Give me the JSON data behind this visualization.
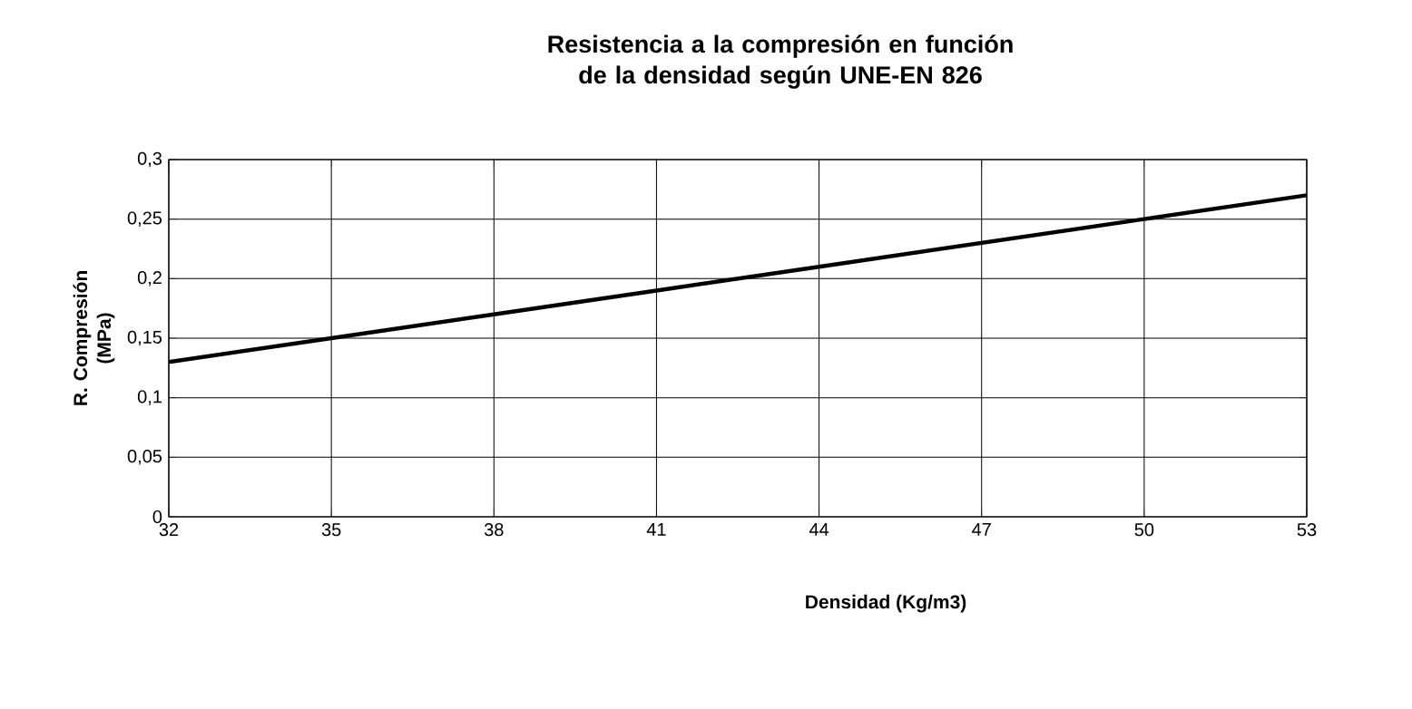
{
  "chart_data": {
    "type": "line",
    "title": "Resistencia a la compresión en función de la densidad según UNE-EN 826",
    "xlabel": "Densidad (Kg/m3)",
    "ylabel": "R. Compresión (MPa)",
    "x": [
      32,
      35,
      38,
      41,
      44,
      47,
      50,
      53
    ],
    "series": [
      {
        "color": "#000000",
        "values": [
          0.13,
          0.15,
          0.17,
          0.19,
          0.21,
          0.23,
          0.25,
          0.27
        ]
      }
    ],
    "xlim": [
      32,
      53
    ],
    "xticks": [
      32,
      35,
      38,
      41,
      44,
      47,
      50,
      53
    ],
    "ylim": [
      0,
      0.3
    ],
    "yticks": [
      0,
      {
        "value": 0.05,
        "label": "0,05"
      },
      {
        "value": 0.1,
        "label": "0,1"
      },
      {
        "value": 0.15,
        "label": "0,15"
      },
      {
        "value": 0.2,
        "label": "0,2"
      },
      {
        "value": 0.25,
        "label": "0,25"
      },
      {
        "value": 0.3,
        "label": "0,3"
      }
    ],
    "grid": true,
    "marker": "none",
    "line_style": "solid"
  }
}
